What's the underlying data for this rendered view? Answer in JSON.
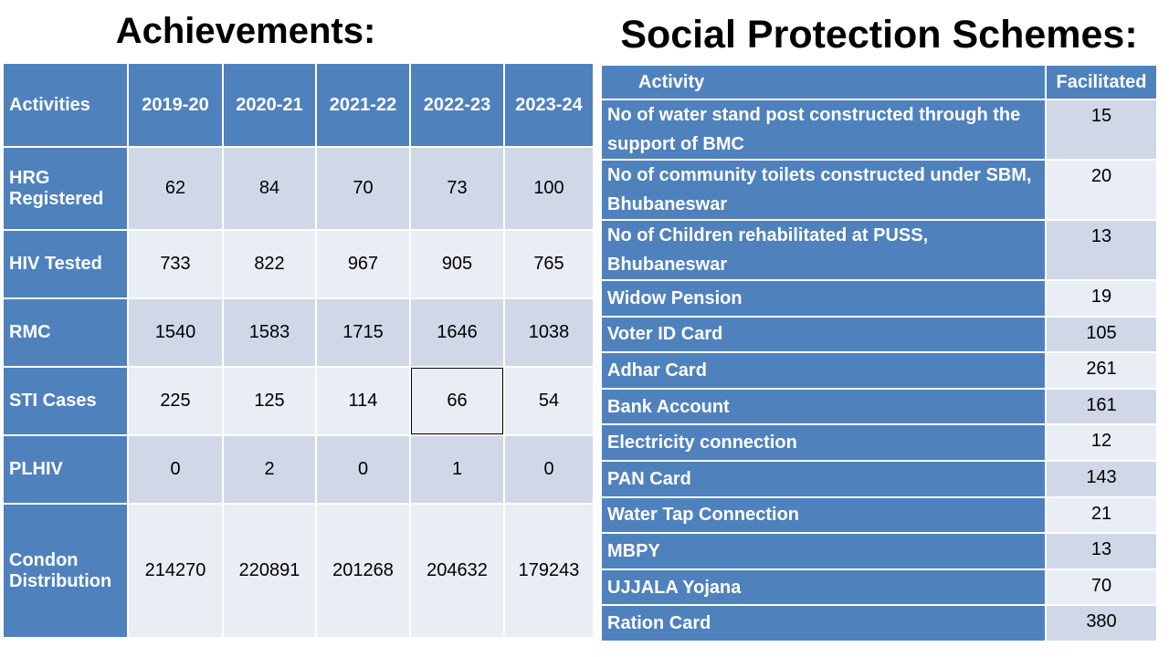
{
  "achievements": {
    "title": "Achievements:",
    "headers": [
      "Activities",
      "2019-20",
      "2020-21",
      "2021-22",
      "2022-23",
      "2023-24"
    ],
    "rows": [
      {
        "label": "HRG Registered",
        "values": [
          "62",
          "84",
          "70",
          "73",
          "100"
        ]
      },
      {
        "label": "HIV Tested",
        "values": [
          "733",
          "822",
          "967",
          "905",
          "765"
        ]
      },
      {
        "label": "RMC",
        "values": [
          "1540",
          "1583",
          "1715",
          "1646",
          "1038"
        ]
      },
      {
        "label": "STI Cases",
        "values": [
          "225",
          "125",
          "114",
          "66",
          "54"
        ]
      },
      {
        "label": "PLHIV",
        "values": [
          "0",
          "2",
          "0",
          "1",
          "0"
        ]
      },
      {
        "label": "Condon Distribution",
        "values": [
          "214270",
          "220891",
          "201268",
          "204632",
          "179243"
        ]
      }
    ]
  },
  "social": {
    "title": "Social Protection Schemes:",
    "headers": [
      "Activity",
      "Facilitated"
    ],
    "rows": [
      {
        "label": "No of water stand post constructed through the support of BMC",
        "value": "15"
      },
      {
        "label": "No of community toilets constructed under SBM, Bhubaneswar",
        "value": "20"
      },
      {
        "label": "No of Children rehabilitated at PUSS, Bhubaneswar",
        "value": "13"
      },
      {
        "label": "Widow Pension",
        "value": "19"
      },
      {
        "label": "Voter ID Card",
        "value": "105"
      },
      {
        "label": "Adhar Card",
        "value": "261"
      },
      {
        "label": "Bank Account",
        "value": "161"
      },
      {
        "label": "Electricity connection",
        "value": "12"
      },
      {
        "label": "PAN Card",
        "value": "143"
      },
      {
        "label": "Water Tap Connection",
        "value": "21"
      },
      {
        "label": "MBPY",
        "value": "13"
      },
      {
        "label": "UJJALA Yojana",
        "value": "70"
      },
      {
        "label": "Ration Card",
        "value": "380"
      }
    ]
  }
}
